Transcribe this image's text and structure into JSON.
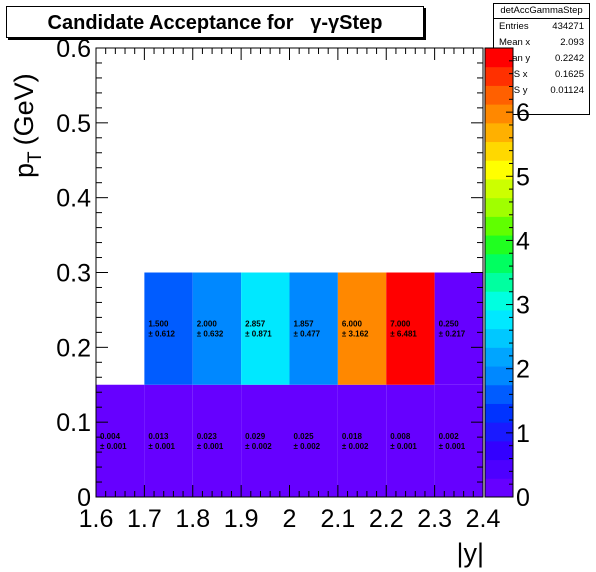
{
  "title": "Candidate Acceptance for   γ-γStep",
  "stats": {
    "name": "detAccGammaStep",
    "rows": [
      {
        "label": "Entries",
        "value": "434271"
      },
      {
        "label": "Mean x",
        "value": "2.093"
      },
      {
        "label": "Mean y",
        "value": "0.2242"
      },
      {
        "label": "RMS x",
        "value": "0.1625"
      },
      {
        "label": "RMS y",
        "value": "0.01124"
      }
    ]
  },
  "chart_data": {
    "type": "heatmap",
    "title": "Candidate Acceptance for   γ-γStep",
    "xlabel": "|y|",
    "ylabel": "p_T (GeV)",
    "ylabel_main": "p",
    "ylabel_sub": "T",
    "ylabel_unit": "(GeV)",
    "xlim": [
      1.6,
      2.4
    ],
    "ylim": [
      0,
      0.6
    ],
    "xticks": [
      "1.6",
      "1.7",
      "1.8",
      "1.9",
      "2",
      "2.1",
      "2.2",
      "2.3",
      "2.4"
    ],
    "yticks": [
      "0",
      "0.1",
      "0.2",
      "0.3",
      "0.4",
      "0.5",
      "0.6"
    ],
    "zlim": [
      0,
      7
    ],
    "zticks": [
      "0",
      "1",
      "2",
      "3",
      "4",
      "5",
      "6"
    ],
    "cells": [
      {
        "x": [
          1.6,
          1.7
        ],
        "y": [
          0,
          0.15
        ],
        "value": 0.004,
        "label": "0.004",
        "error": "± 0.001"
      },
      {
        "x": [
          1.7,
          1.8
        ],
        "y": [
          0,
          0.15
        ],
        "value": 0.013,
        "label": "0.013",
        "error": "± 0.001"
      },
      {
        "x": [
          1.8,
          1.9
        ],
        "y": [
          0,
          0.15
        ],
        "value": 0.023,
        "label": "0.023",
        "error": "± 0.001"
      },
      {
        "x": [
          1.9,
          2.0
        ],
        "y": [
          0,
          0.15
        ],
        "value": 0.029,
        "label": "0.029",
        "error": "± 0.002"
      },
      {
        "x": [
          2.0,
          2.1
        ],
        "y": [
          0,
          0.15
        ],
        "value": 0.025,
        "label": "0.025",
        "error": "± 0.002"
      },
      {
        "x": [
          2.1,
          2.2
        ],
        "y": [
          0,
          0.15
        ],
        "value": 0.018,
        "label": "0.018",
        "error": "± 0.002"
      },
      {
        "x": [
          2.2,
          2.3
        ],
        "y": [
          0,
          0.15
        ],
        "value": 0.008,
        "label": "0.008",
        "error": "± 0.001"
      },
      {
        "x": [
          2.3,
          2.4
        ],
        "y": [
          0,
          0.15
        ],
        "value": 0.002,
        "label": "0.002",
        "error": "± 0.001"
      },
      {
        "x": [
          1.7,
          1.8
        ],
        "y": [
          0.15,
          0.3
        ],
        "value": 1.5,
        "label": "1.500",
        "error": "± 0.612"
      },
      {
        "x": [
          1.8,
          1.9
        ],
        "y": [
          0.15,
          0.3
        ],
        "value": 2.0,
        "label": "2.000",
        "error": "± 0.632"
      },
      {
        "x": [
          1.9,
          2.0
        ],
        "y": [
          0.15,
          0.3
        ],
        "value": 2.857,
        "label": "2.857",
        "error": "± 0.871"
      },
      {
        "x": [
          2.0,
          2.1
        ],
        "y": [
          0.15,
          0.3
        ],
        "value": 1.857,
        "label": "1.857",
        "error": "± 0.477"
      },
      {
        "x": [
          2.1,
          2.2
        ],
        "y": [
          0.15,
          0.3
        ],
        "value": 6.0,
        "label": "6.000",
        "error": "± 3.162"
      },
      {
        "x": [
          2.2,
          2.3
        ],
        "y": [
          0.15,
          0.3
        ],
        "value": 7.0,
        "label": "7.000",
        "error": "± 6.481"
      },
      {
        "x": [
          2.3,
          2.4
        ],
        "y": [
          0.15,
          0.3
        ],
        "value": 0.25,
        "label": "0.250",
        "error": "± 0.217"
      }
    ],
    "colors": {
      "frame": "#000000",
      "low": "#6600ff",
      "palette": [
        "#6600ff",
        "#4d00ff",
        "#3300ff",
        "#1a1aff",
        "#0033ff",
        "#005cff",
        "#0088ff",
        "#00a5ff",
        "#00c8ff",
        "#00e8ff",
        "#00ffe0",
        "#00ffa0",
        "#00ff60",
        "#20ff20",
        "#60ff00",
        "#a0ff00",
        "#ccff00",
        "#ffff00",
        "#ffd800",
        "#ffb000",
        "#ff8800",
        "#ff6000",
        "#ff3000",
        "#ff0000"
      ]
    }
  }
}
